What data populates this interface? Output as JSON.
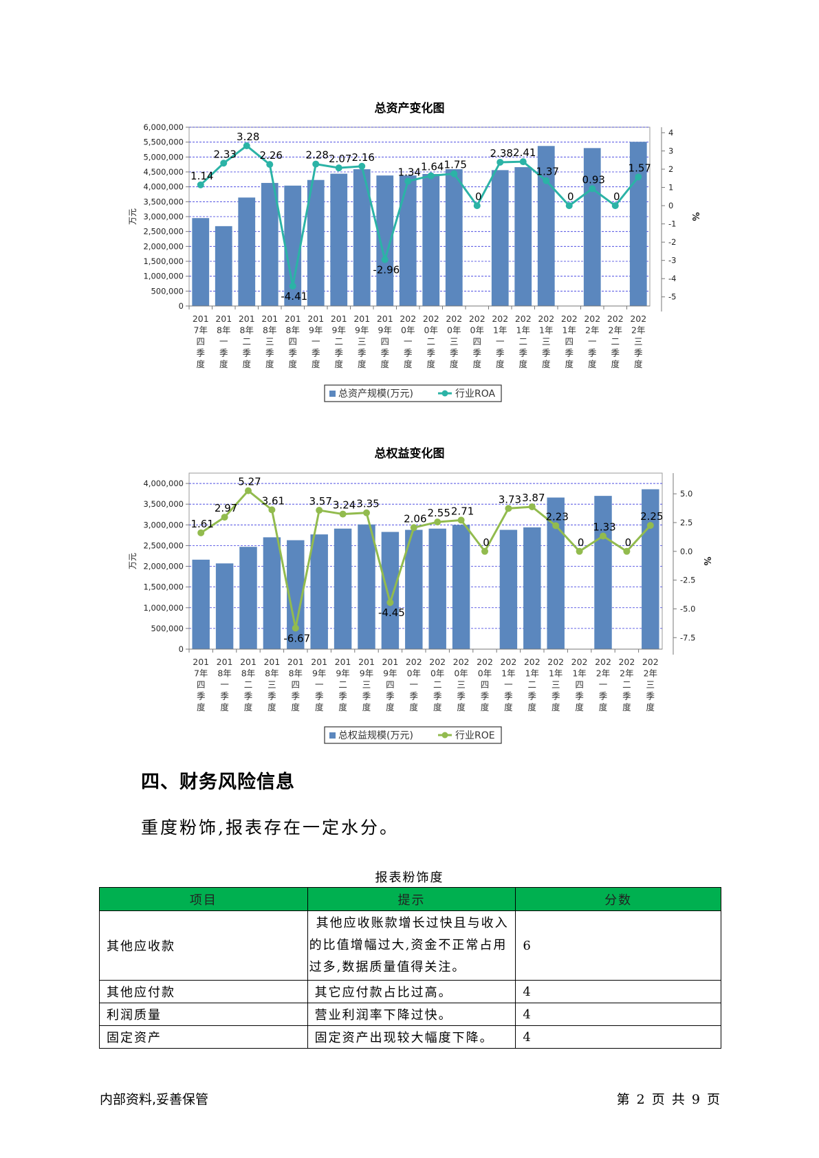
{
  "charts": {
    "assets": {
      "title": "总资产变化图",
      "ylabel_left": "万元",
      "ylabel_right": "%",
      "legend_bar": "总资产规模(万元)",
      "legend_line": "行业ROA",
      "bar_color": "#5b87be",
      "line_color": "#2bb3a6"
    },
    "equity": {
      "title": "总权益变化图",
      "ylabel_left": "万元",
      "ylabel_right": "%",
      "legend_bar": "总权益规模(万元)",
      "legend_line": "行业ROE",
      "bar_color": "#5b87be",
      "line_color": "#92bb4e"
    }
  },
  "chart_data": [
    {
      "type": "bar",
      "title": "总资产变化图",
      "categories": [
        "2017年四季度",
        "2018年一季度",
        "2018年二季度",
        "2018年三季度",
        "2018年四季度",
        "2019年一季度",
        "2019年二季度",
        "2019年三季度",
        "2019年四季度",
        "2020年一季度",
        "2020年二季度",
        "2020年三季度",
        "2020年四季度",
        "2021年一季度",
        "2021年二季度",
        "2021年三季度",
        "2021年四季度",
        "2022年一季度",
        "2022年二季度",
        "2022年三季度"
      ],
      "category_lines": [
        [
          "201",
          "7年",
          "四",
          "季",
          "度"
        ],
        [
          "201",
          "8年",
          "一",
          "季",
          "度"
        ],
        [
          "201",
          "8年",
          "二",
          "季",
          "度"
        ],
        [
          "201",
          "8年",
          "三",
          "季",
          "度"
        ],
        [
          "201",
          "8年",
          "四",
          "季",
          "度"
        ],
        [
          "201",
          "9年",
          "一",
          "季",
          "度"
        ],
        [
          "201",
          "9年",
          "二",
          "季",
          "度"
        ],
        [
          "201",
          "9年",
          "三",
          "季",
          "度"
        ],
        [
          "201",
          "9年",
          "四",
          "季",
          "度"
        ],
        [
          "202",
          "0年",
          "一",
          "季",
          "度"
        ],
        [
          "202",
          "0年",
          "二",
          "季",
          "度"
        ],
        [
          "202",
          "0年",
          "三",
          "季",
          "度"
        ],
        [
          "202",
          "0年",
          "四",
          "季",
          "度"
        ],
        [
          "202",
          "1年",
          "一",
          "季",
          "度"
        ],
        [
          "202",
          "1年",
          "二",
          "季",
          "度"
        ],
        [
          "202",
          "1年",
          "三",
          "季",
          "度"
        ],
        [
          "202",
          "1年",
          "四",
          "季",
          "度"
        ],
        [
          "202",
          "2年",
          "一",
          "季",
          "度"
        ],
        [
          "202",
          "2年",
          "二",
          "季",
          "度"
        ],
        [
          "202",
          "2年",
          "三",
          "季",
          "度"
        ]
      ],
      "series": [
        {
          "name": "总资产规模(万元)",
          "axis": "left",
          "type": "bar",
          "values": [
            2950000,
            2680000,
            3640000,
            4130000,
            4040000,
            4230000,
            4440000,
            4590000,
            4380000,
            4380000,
            4430000,
            4590000,
            null,
            4560000,
            4660000,
            5370000,
            null,
            5300000,
            null,
            5510000
          ]
        },
        {
          "name": "行业ROA",
          "axis": "right",
          "type": "line",
          "values": [
            1.14,
            2.33,
            3.28,
            2.26,
            -4.41,
            2.28,
            2.07,
            2.16,
            -2.96,
            1.34,
            1.64,
            1.75,
            0,
            2.38,
            2.41,
            1.37,
            0,
            0.93,
            0,
            1.57
          ],
          "labels": [
            "1.14",
            "2.33",
            "3.28",
            "2.26",
            "-4.41",
            "2.28",
            "2.07",
            "2.16",
            "-2.96",
            "1.34",
            "1.64",
            "1.75",
            "0",
            "2.38",
            "2.41",
            "1.37",
            "0",
            "0.93",
            "0",
            "1.57"
          ]
        }
      ],
      "ylim_left": [
        0,
        6000000
      ],
      "yticks_left": [
        "0",
        "500,000",
        "1,000,000",
        "1,500,000",
        "2,000,000",
        "2,500,000",
        "3,000,000",
        "3,500,000",
        "4,000,000",
        "4,500,000",
        "5,000,000",
        "5,500,000",
        "6,000,000"
      ],
      "ylim_right": [
        -5.5,
        4.3
      ],
      "yticks_right": [
        {
          "v": 4,
          "t": "4"
        },
        {
          "v": 3,
          "t": "3"
        },
        {
          "v": 2,
          "t": "2"
        },
        {
          "v": 1,
          "t": "1"
        },
        {
          "v": 0,
          "t": "0"
        },
        {
          "v": -1,
          "t": "-1"
        },
        {
          "v": -2,
          "t": "-2"
        },
        {
          "v": -3,
          "t": "-3"
        },
        {
          "v": -4,
          "t": "-4"
        },
        {
          "v": -5,
          "t": "-5"
        }
      ],
      "ylabel": "万元",
      "ylabel_right": "%",
      "grid": true,
      "legend": "bottom"
    },
    {
      "type": "bar",
      "title": "总权益变化图",
      "categories": [
        "2017年四季度",
        "2018年一季度",
        "2018年二季度",
        "2018年三季度",
        "2018年四季度",
        "2019年一季度",
        "2019年二季度",
        "2019年三季度",
        "2019年四季度",
        "2020年一季度",
        "2020年二季度",
        "2020年三季度",
        "2020年四季度",
        "2021年一季度",
        "2021年二季度",
        "2021年三季度",
        "2021年四季度",
        "2022年一季度",
        "2022年二季度",
        "2022年三季度"
      ],
      "category_lines": [
        [
          "201",
          "7年",
          "四",
          "季",
          "度"
        ],
        [
          "201",
          "8年",
          "一",
          "季",
          "度"
        ],
        [
          "201",
          "8年",
          "二",
          "季",
          "度"
        ],
        [
          "201",
          "8年",
          "三",
          "季",
          "度"
        ],
        [
          "201",
          "8年",
          "四",
          "季",
          "度"
        ],
        [
          "201",
          "9年",
          "一",
          "季",
          "度"
        ],
        [
          "201",
          "9年",
          "二",
          "季",
          "度"
        ],
        [
          "201",
          "9年",
          "三",
          "季",
          "度"
        ],
        [
          "201",
          "9年",
          "四",
          "季",
          "度"
        ],
        [
          "202",
          "0年",
          "一",
          "季",
          "度"
        ],
        [
          "202",
          "0年",
          "二",
          "季",
          "度"
        ],
        [
          "202",
          "0年",
          "三",
          "季",
          "度"
        ],
        [
          "202",
          "0年",
          "四",
          "季",
          "度"
        ],
        [
          "202",
          "1年",
          "一",
          "季",
          "度"
        ],
        [
          "202",
          "1年",
          "二",
          "季",
          "度"
        ],
        [
          "202",
          "1年",
          "三",
          "季",
          "度"
        ],
        [
          "202",
          "1年",
          "四",
          "季",
          "度"
        ],
        [
          "202",
          "2年",
          "一",
          "季",
          "度"
        ],
        [
          "202",
          "2年",
          "二",
          "季",
          "度"
        ],
        [
          "202",
          "2年",
          "三",
          "季",
          "度"
        ]
      ],
      "series": [
        {
          "name": "总权益规模(万元)",
          "axis": "left",
          "type": "bar",
          "values": [
            2160000,
            2070000,
            2470000,
            2700000,
            2630000,
            2770000,
            2910000,
            3010000,
            2830000,
            2880000,
            2910000,
            3000000,
            null,
            2880000,
            2940000,
            3660000,
            null,
            3700000,
            null,
            3860000
          ]
        },
        {
          "name": "行业ROE",
          "axis": "right",
          "type": "line",
          "values": [
            1.61,
            2.97,
            5.27,
            3.61,
            -6.67,
            3.57,
            3.24,
            3.35,
            -4.45,
            2.06,
            2.55,
            2.71,
            0,
            3.73,
            3.87,
            2.23,
            0,
            1.33,
            0,
            2.25
          ],
          "labels": [
            "1.61",
            "2.97",
            "5.27",
            "3.61",
            "-6.67",
            "3.57",
            "3.24",
            "3.35",
            "-4.45",
            "2.06",
            "2.55",
            "2.71",
            "0",
            "3.73",
            "3.87",
            "2.23",
            "0",
            "1.33",
            "0",
            "2.25"
          ]
        }
      ],
      "ylim_left": [
        0,
        4250000
      ],
      "yticks_left": [
        "0",
        "500,000",
        "1,000,000",
        "1,500,000",
        "2,000,000",
        "2,500,000",
        "3,000,000",
        "3,500,000",
        "4,000,000"
      ],
      "ylim_right": [
        -8.5,
        6.8
      ],
      "yticks_right": [
        {
          "v": 5,
          "t": "5.0"
        },
        {
          "v": 2.5,
          "t": "2.5"
        },
        {
          "v": 0,
          "t": "0.0"
        },
        {
          "v": -2.5,
          "t": "-2.5"
        },
        {
          "v": -5,
          "t": "-5.0"
        },
        {
          "v": -7.5,
          "t": "-7.5"
        }
      ],
      "ylabel": "万元",
      "ylabel_right": "%",
      "grid": true,
      "legend": "bottom"
    }
  ],
  "section": {
    "heading": "四、财务风险信息",
    "text": "重度粉饰,报表存在一定水分。"
  },
  "table": {
    "caption": "报表粉饰度",
    "headers": [
      "项目",
      "提示",
      "分数"
    ],
    "rows": [
      {
        "item": "其他应收款",
        "hint": "其他应收账款增长过快且与收入的比值增幅过大,资金不正常占用过多,数据质量值得关注。",
        "score": "6"
      },
      {
        "item": "其他应付款",
        "hint": "其它应付款占比过高。",
        "score": "4"
      },
      {
        "item": "利润质量",
        "hint": "营业利润率下降过快。",
        "score": "4"
      },
      {
        "item": "固定资产",
        "hint": "固定资产出现较大幅度下降。",
        "score": "4"
      }
    ]
  },
  "footer": {
    "left": "内部资料,妥善保管",
    "right": "第 2 页   共 9 页"
  }
}
